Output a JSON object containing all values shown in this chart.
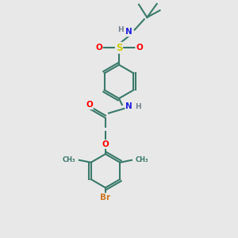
{
  "bg_color": "#e8e8e8",
  "bond_color": "#3a7a6a",
  "atom_colors": {
    "N": "#2020e0",
    "O": "#ff0000",
    "S": "#cccc00",
    "Br": "#cc7722",
    "H": "#708090",
    "C": "#3a7a6a"
  }
}
